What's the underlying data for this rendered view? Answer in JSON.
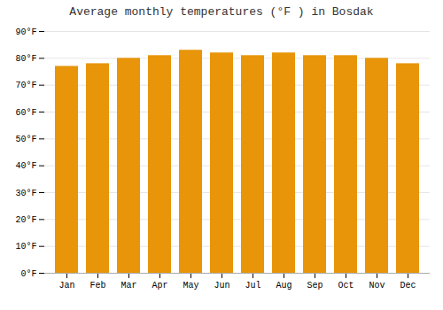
{
  "chart_data": {
    "type": "bar",
    "title": "Average monthly temperatures (°F ) in Bosdak",
    "categories": [
      "Jan",
      "Feb",
      "Mar",
      "Apr",
      "May",
      "Jun",
      "Jul",
      "Aug",
      "Sep",
      "Oct",
      "Nov",
      "Dec"
    ],
    "values": [
      77,
      78,
      80,
      81,
      83,
      82,
      81,
      82,
      81,
      81,
      80,
      78
    ],
    "color": "#E8950A",
    "ylim": [
      0,
      90
    ],
    "yticks": [
      {
        "value": 0,
        "label": "0°F"
      },
      {
        "value": 10,
        "label": "10°F"
      },
      {
        "value": 20,
        "label": "20°F"
      },
      {
        "value": 30,
        "label": "30°F"
      },
      {
        "value": 40,
        "label": "40°F"
      },
      {
        "value": 50,
        "label": "50°F"
      },
      {
        "value": 60,
        "label": "60°F"
      },
      {
        "value": 70,
        "label": "70°F"
      },
      {
        "value": 80,
        "label": "80°F"
      },
      {
        "value": 90,
        "label": "90°F"
      }
    ],
    "grid": true
  }
}
